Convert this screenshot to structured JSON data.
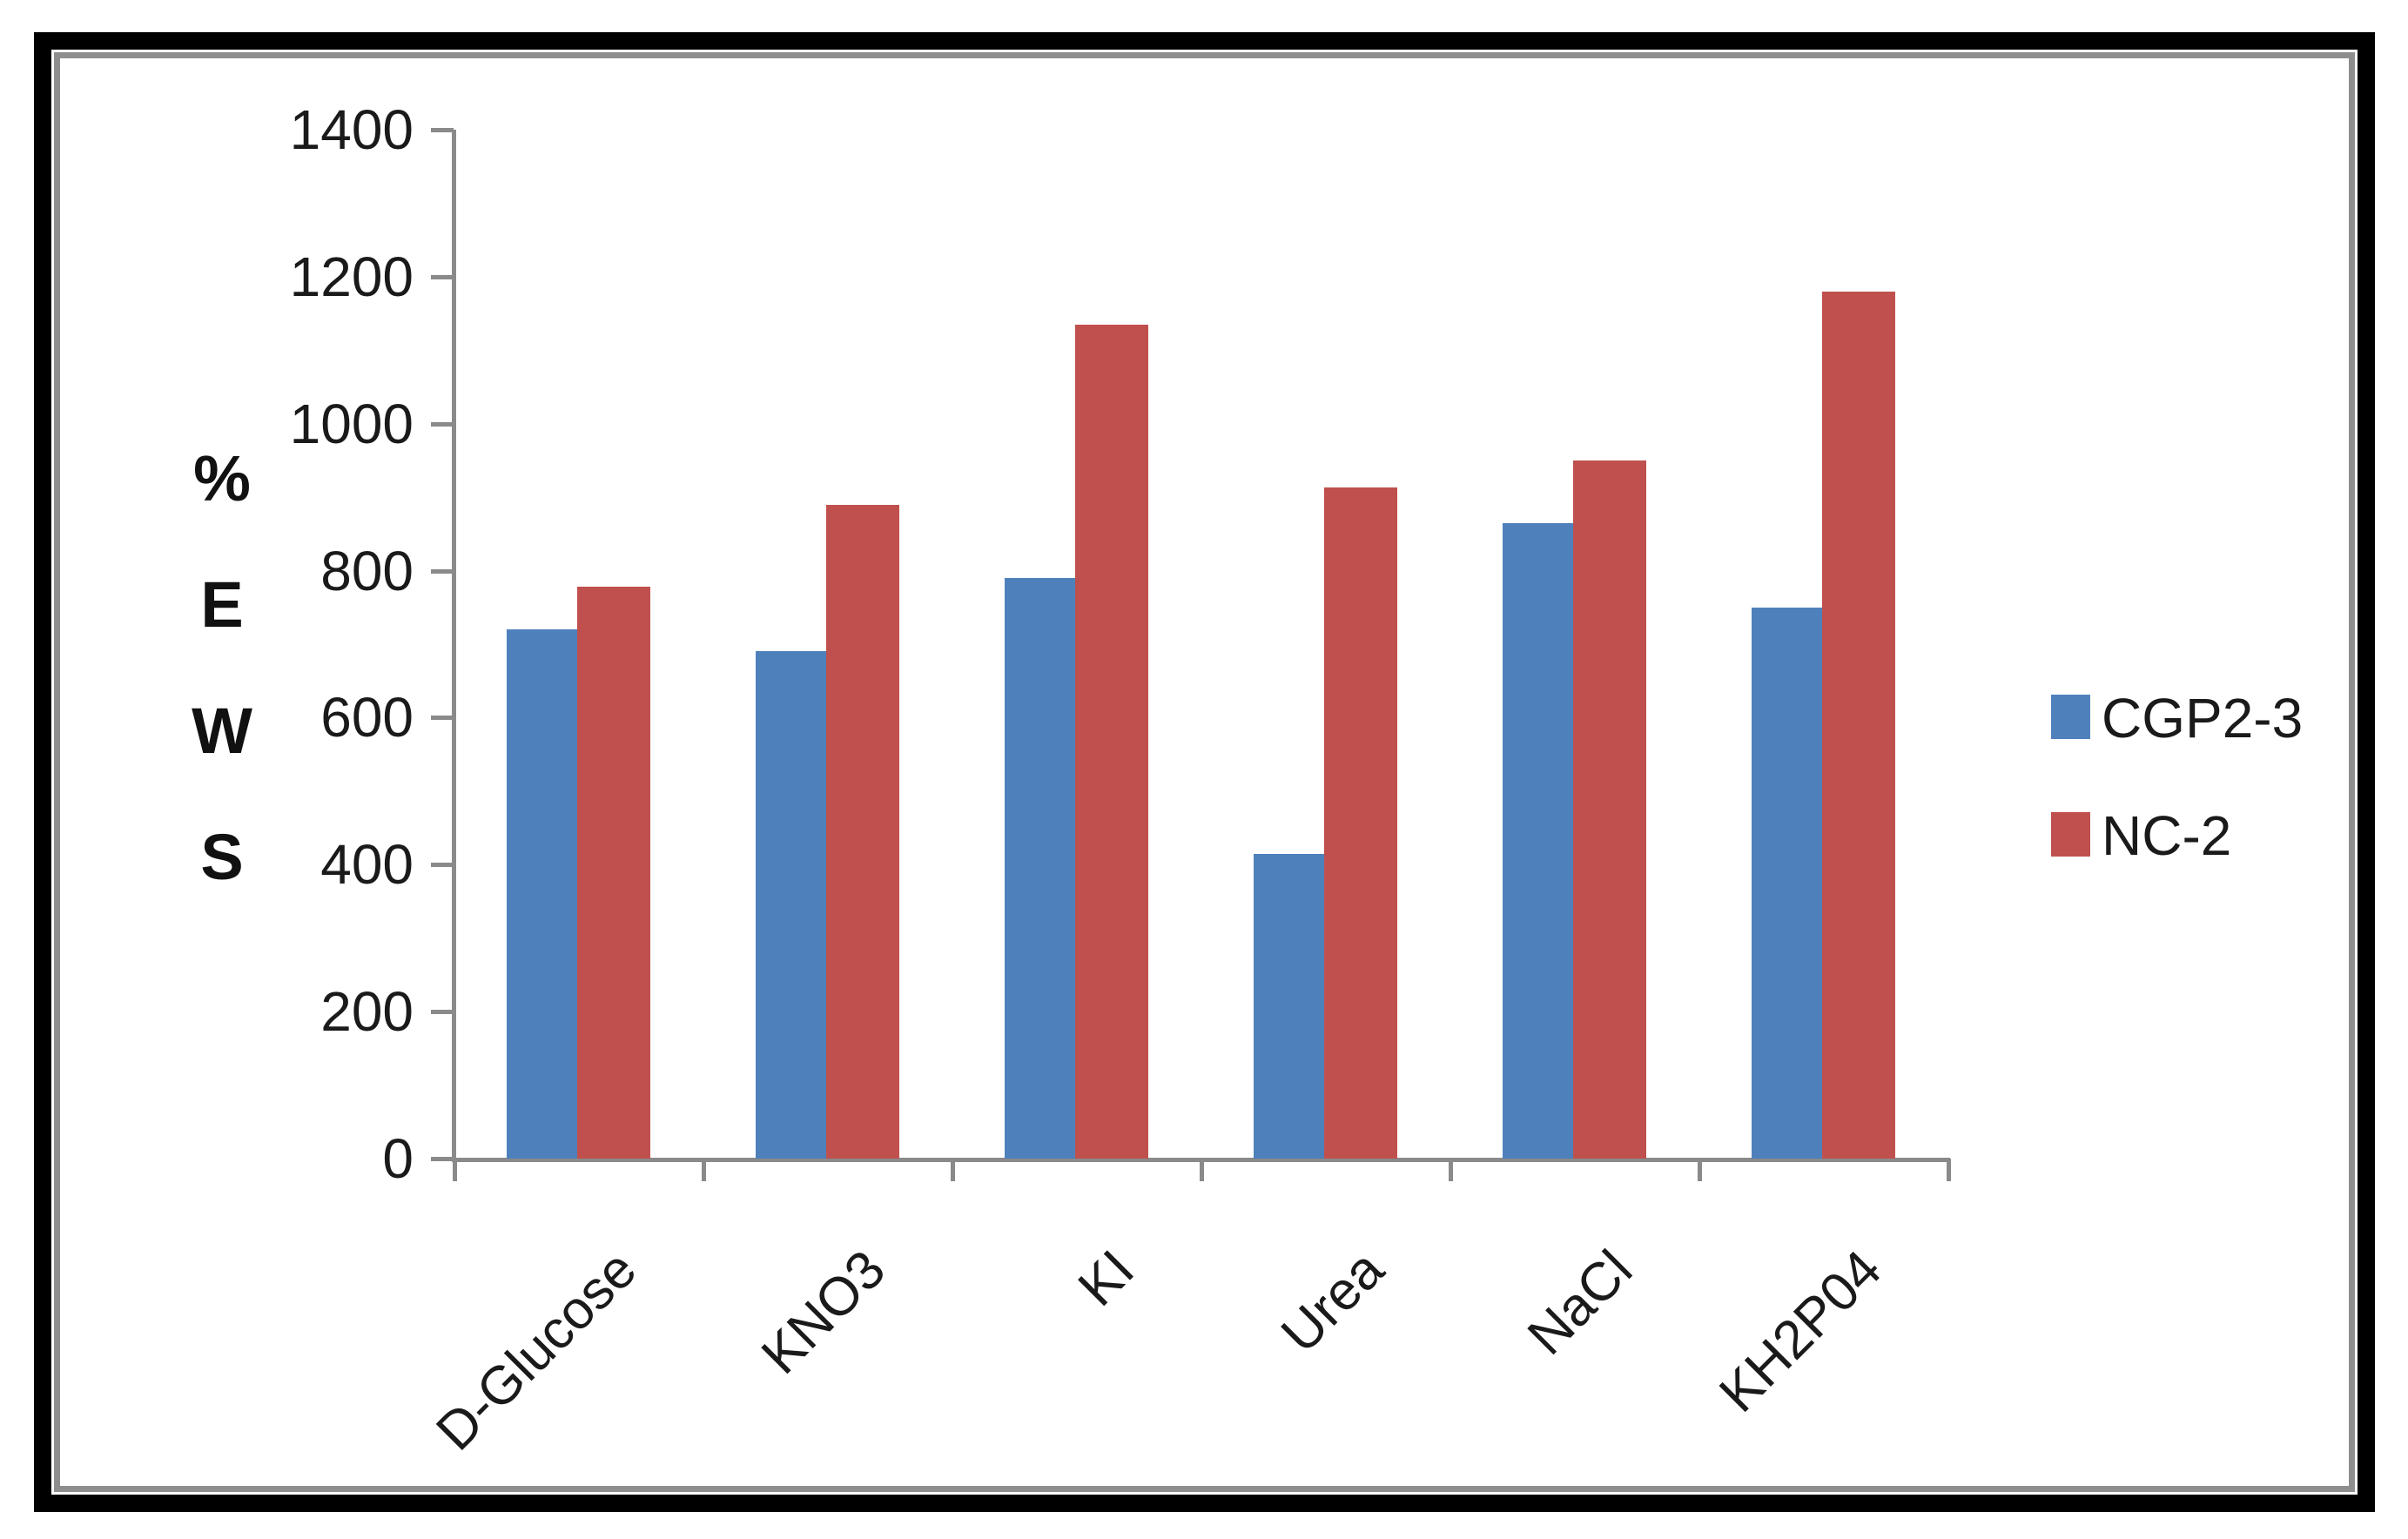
{
  "chart_data": {
    "type": "bar",
    "title": "",
    "categories": [
      "D-Glucose",
      "KNO3",
      "KI",
      "Urea",
      "NaCl",
      "KH2P04"
    ],
    "series": [
      {
        "name": "CGP2-3",
        "color": "#4E81BC",
        "values": [
          720,
          690,
          790,
          415,
          865,
          750
        ]
      },
      {
        "name": "NC-2",
        "color": "#C0504D",
        "values": [
          778,
          890,
          1135,
          913,
          950,
          1180
        ]
      }
    ],
    "ylabel_chars": [
      "%",
      "E",
      "W",
      "S"
    ],
    "yticks": [
      0,
      200,
      400,
      600,
      800,
      1000,
      1200,
      1400
    ],
    "ylim": [
      0,
      1400
    ],
    "xlabel": "",
    "grid": false,
    "legend_position": "right",
    "axis_color": "#8a8a8a",
    "frame_outer_color": "#000000",
    "frame_inner_color": "#8e8e8e",
    "background_color": "#ffffff"
  }
}
